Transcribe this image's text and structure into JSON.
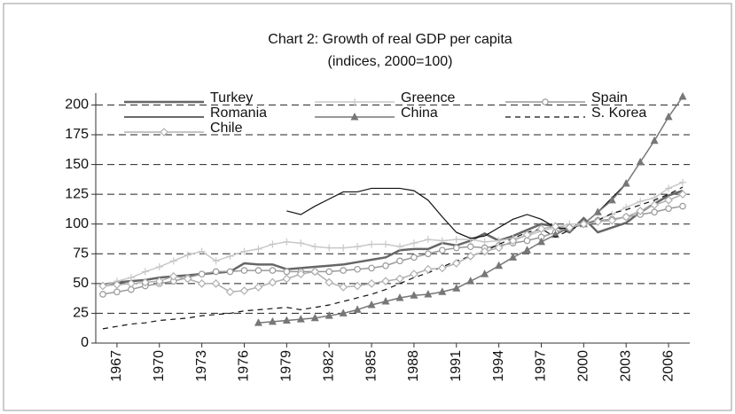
{
  "chart_data": {
    "type": "line",
    "title": "Chart 2: Growth of real GDP per capita",
    "subtitle": "(indices, 2000=100)",
    "x": [
      1966,
      1967,
      1968,
      1969,
      1970,
      1971,
      1972,
      1973,
      1974,
      1975,
      1976,
      1977,
      1978,
      1979,
      1980,
      1981,
      1982,
      1983,
      1984,
      1985,
      1986,
      1987,
      1988,
      1989,
      1990,
      1991,
      1992,
      1993,
      1994,
      1995,
      1996,
      1997,
      1998,
      1999,
      2000,
      2001,
      2002,
      2003,
      2004,
      2005,
      2006,
      2007
    ],
    "xlim": [
      1965.5,
      2007.5
    ],
    "xticks": [
      1967,
      1970,
      1973,
      1976,
      1979,
      1982,
      1985,
      1988,
      1991,
      1994,
      1997,
      2000,
      2003,
      2006
    ],
    "ylim": [
      0,
      210
    ],
    "yticks": [
      0,
      25,
      50,
      75,
      100,
      125,
      150,
      175,
      200
    ],
    "grid": true,
    "series": [
      {
        "name": "Turkey",
        "color": "#666666",
        "width": 2.5,
        "marker": "none",
        "dash": "none",
        "values": [
          49,
          51,
          52,
          53,
          55,
          56,
          57,
          58,
          59,
          60,
          67,
          66,
          66,
          62,
          63,
          64,
          65,
          66,
          68,
          70,
          72,
          78,
          79,
          79,
          84,
          82,
          86,
          92,
          86,
          90,
          95,
          100,
          98,
          93,
          105,
          93,
          97,
          101,
          110,
          117,
          124,
          128
        ]
      },
      {
        "name": "Greence",
        "color": "#c8c8c8",
        "width": 1.5,
        "marker": "plus",
        "dash": "none",
        "values": [
          48,
          52,
          55,
          60,
          64,
          69,
          74,
          77,
          69,
          73,
          77,
          79,
          83,
          85,
          84,
          81,
          80,
          80,
          81,
          83,
          83,
          81,
          84,
          87,
          86,
          87,
          87,
          85,
          86,
          88,
          90,
          94,
          97,
          100,
          100,
          104,
          108,
          114,
          119,
          122,
          130,
          135
        ]
      },
      {
        "name": "Spain",
        "color": "#999999",
        "width": 1.5,
        "marker": "circle",
        "dash": "none",
        "values": [
          41,
          43,
          45,
          48,
          50,
          52,
          55,
          58,
          60,
          60,
          61,
          61,
          61,
          60,
          60,
          60,
          60,
          61,
          62,
          63,
          65,
          69,
          72,
          75,
          78,
          80,
          81,
          80,
          82,
          84,
          86,
          89,
          93,
          97,
          100,
          103,
          104,
          106,
          108,
          110,
          113,
          115
        ]
      },
      {
        "name": "Romania",
        "color": "#111111",
        "width": 1.2,
        "marker": "none",
        "dash": "none",
        "values": [
          null,
          null,
          null,
          null,
          null,
          null,
          null,
          null,
          null,
          null,
          null,
          null,
          null,
          111,
          108,
          115,
          121,
          127,
          127,
          130,
          130,
          130,
          128,
          120,
          106,
          93,
          88,
          90,
          97,
          104,
          108,
          104,
          97,
          96,
          100,
          110,
          122,
          134,
          null,
          null,
          null,
          null
        ]
      },
      {
        "name": "China",
        "color": "#777777",
        "width": 1.5,
        "marker": "triangle",
        "dash": "none",
        "values": [
          null,
          null,
          null,
          null,
          null,
          null,
          null,
          null,
          null,
          null,
          null,
          17,
          18,
          19,
          20,
          21,
          23,
          25,
          28,
          32,
          35,
          38,
          40,
          41,
          43,
          46,
          52,
          58,
          65,
          72,
          78,
          85,
          91,
          97,
          100,
          110,
          120,
          134,
          152,
          170,
          190,
          207
        ]
      },
      {
        "name": "S. Korea",
        "color": "#111111",
        "width": 1.2,
        "marker": "none",
        "dash": "6,5",
        "values": [
          12,
          14,
          16,
          17,
          19,
          20,
          21,
          23,
          24,
          25,
          27,
          28,
          29,
          30,
          28,
          30,
          32,
          35,
          38,
          41,
          45,
          50,
          55,
          59,
          64,
          69,
          73,
          77,
          83,
          88,
          93,
          96,
          89,
          95,
          100,
          103,
          109,
          112,
          116,
          120,
          125,
          131
        ]
      },
      {
        "name": "Chile",
        "color": "#b0b0b0",
        "width": 1.5,
        "marker": "diamond",
        "dash": "none",
        "values": [
          48,
          49,
          50,
          51,
          52,
          56,
          54,
          50,
          50,
          43,
          44,
          47,
          51,
          54,
          58,
          60,
          51,
          47,
          48,
          50,
          52,
          54,
          58,
          62,
          63,
          67,
          73,
          77,
          80,
          86,
          91,
          96,
          98,
          97,
          100,
          102,
          103,
          106,
          111,
          116,
          120,
          125
        ]
      }
    ]
  }
}
